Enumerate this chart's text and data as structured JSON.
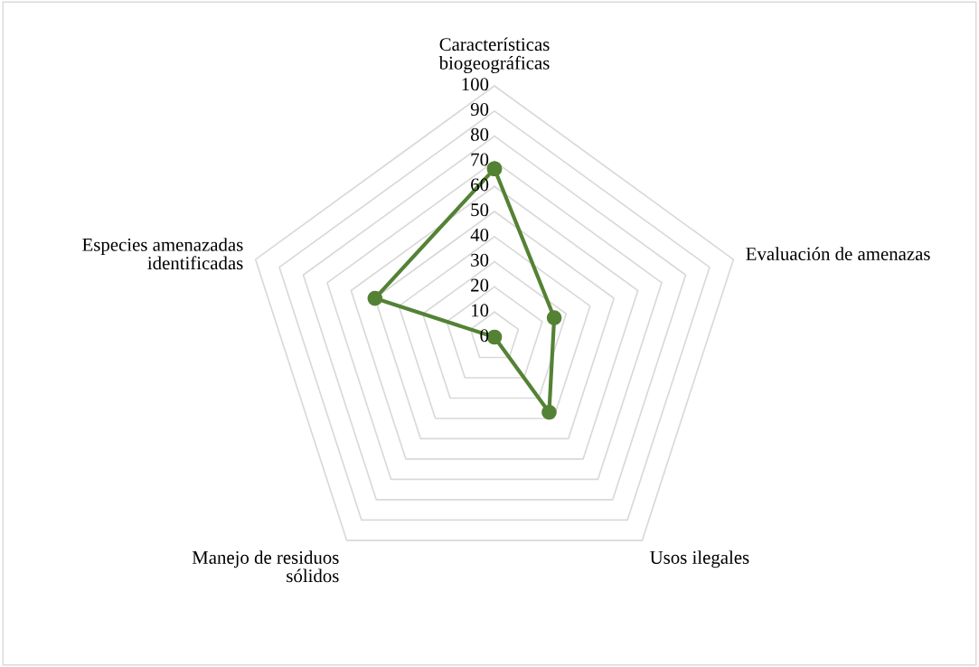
{
  "chart_data": {
    "type": "radar",
    "categories": [
      "Características\nbiogeográficas",
      "Evaluación de amenazas",
      "Usos ilegales",
      "Manejo de residuos\nsólidos",
      "Especies amenazadas\nidentificadas"
    ],
    "series": [
      {
        "color": "#548235",
        "values": [
          67,
          25,
          37,
          0,
          50
        ]
      }
    ],
    "ylim": [
      0,
      100
    ],
    "yticks": [
      0,
      10,
      20,
      30,
      40,
      50,
      60,
      70,
      80,
      90,
      100
    ],
    "marker": "circle",
    "line_style": "solid",
    "grid": true,
    "legend": false
  }
}
